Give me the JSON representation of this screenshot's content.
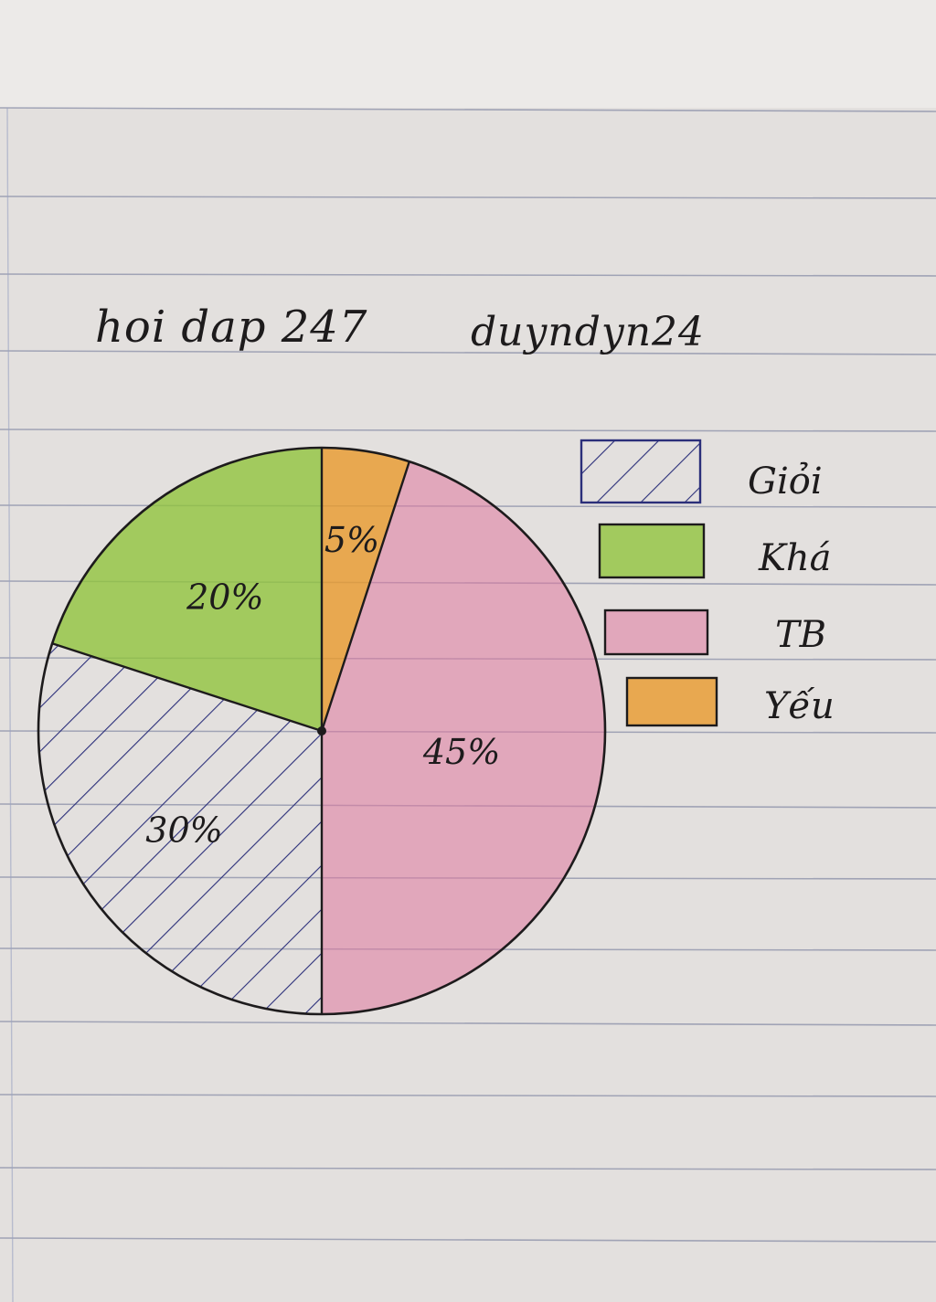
{
  "notes": {
    "left": "hoi dap 247",
    "right": "duyndyn24"
  },
  "colors": {
    "paper": "#e3e0de",
    "ruled_line": "#8a8fa8",
    "ink": "#1d1b1c",
    "gioi_hatch": "#2b2f7a",
    "kha_fill": "#8fc43a",
    "tb_fill": "#e0789e",
    "yeu_fill": "#e89a2c"
  },
  "chart_data": {
    "type": "pie",
    "categories": [
      "Giỏi",
      "Khá",
      "TB",
      "Yếu"
    ],
    "values": [
      30,
      20,
      45,
      5
    ],
    "labels": [
      "30%",
      "20%",
      "45%",
      "5%"
    ],
    "legend": [
      "Giỏi",
      "Khá",
      "TB",
      "Yếu"
    ],
    "legend_position": "right",
    "fill_styles": [
      "hatch",
      "solid",
      "solid",
      "solid"
    ]
  }
}
